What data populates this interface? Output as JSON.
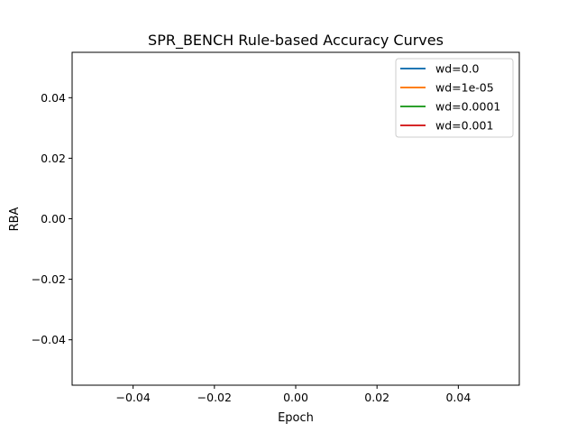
{
  "chart_data": {
    "type": "line",
    "title": "SPR_BENCH Rule-based Accuracy Curves",
    "xlabel": "Epoch",
    "ylabel": "RBA",
    "xlim": [
      -0.055,
      0.055
    ],
    "ylim": [
      -0.055,
      0.055
    ],
    "x_ticks": [
      -0.04,
      -0.02,
      0.0,
      0.02,
      0.04
    ],
    "x_tick_labels": [
      "−0.04",
      "−0.02",
      "0.00",
      "0.02",
      "0.04"
    ],
    "y_ticks": [
      0.04,
      0.02,
      0.0,
      -0.02,
      -0.04
    ],
    "y_tick_labels": [
      "0.04",
      "0.02",
      "0.00",
      "−0.02",
      "−0.04"
    ],
    "grid": false,
    "legend_position": "top-right",
    "series": [
      {
        "name": "wd=0.0",
        "color": "#1f77b4",
        "x": [],
        "y": []
      },
      {
        "name": "wd=1e-05",
        "color": "#ff7f0e",
        "x": [],
        "y": []
      },
      {
        "name": "wd=0.0001",
        "color": "#2ca02c",
        "x": [],
        "y": []
      },
      {
        "name": "wd=0.001",
        "color": "#d62728",
        "x": [],
        "y": []
      }
    ]
  }
}
